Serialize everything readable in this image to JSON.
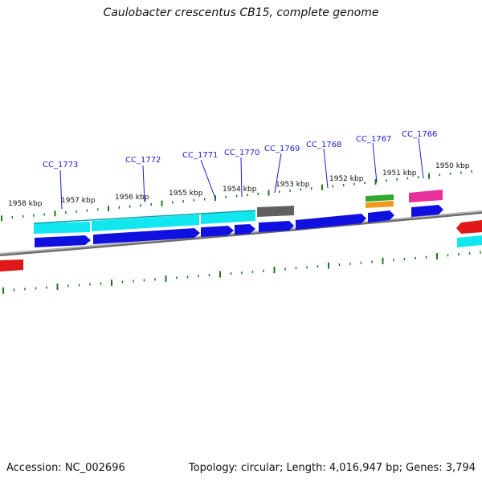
{
  "title": "Caulobacter crescentus CB15, complete genome",
  "footer": {
    "accession": "Accession: NC_002696",
    "summary": "Topology: circular; Length: 4,016,947 bp; Genes: 3,794"
  },
  "colors": {
    "backbone": "#8a8a8a",
    "gene_blue": "#1010e0",
    "gene_cyan": "#12e6ee",
    "gene_gray": "#6a6a6a",
    "gene_green": "#2ea82e",
    "gene_orange": "#f09a1a",
    "gene_pink": "#e8309a",
    "gene_red": "#e01818",
    "tick_green": "#1b7a1b",
    "label_blue": "#1a1adb"
  },
  "kbp_labels": [
    "1958 kbp",
    "1957 kbp",
    "1956 kbp",
    "1955 kbp",
    "1954 kbp",
    "1953 kbp",
    "1952 kbp",
    "1951 kbp",
    "1950 kbp"
  ],
  "gene_labels": [
    "CC_1773",
    "CC_1772",
    "CC_1771",
    "CC_1770",
    "CC_1769",
    "CC_1768",
    "CC_1767",
    "CC_1766"
  ]
}
